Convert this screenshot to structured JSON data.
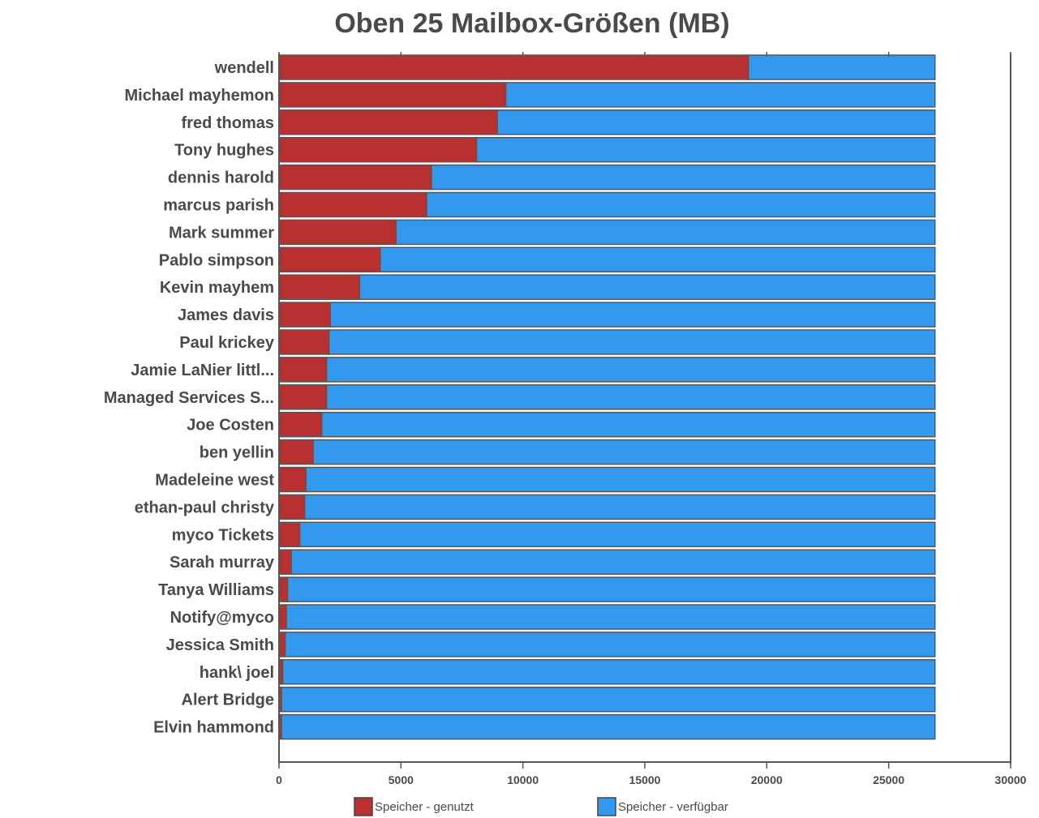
{
  "chart_data": {
    "type": "bar",
    "orientation": "horizontal",
    "stacked": true,
    "title": "Oben 25 Mailbox-Größen (MB)",
    "xlabel": "",
    "ylabel": "",
    "xlim": [
      0,
      30000
    ],
    "x_ticks": [
      "0",
      "5000",
      "10000",
      "15000",
      "20000",
      "25000",
      "30000"
    ],
    "grid": false,
    "legend_position": "bottom",
    "categories": [
      "wendell",
      "Michael mayhemon",
      "fred thomas",
      "Tony hughes",
      "dennis harold",
      "marcus parish",
      "Mark summer",
      "Pablo simpson",
      "Kevin mayhem",
      "James davis",
      "Paul krickey",
      "Jamie LaNier littl...",
      "Managed Services S...",
      "Joe Costen",
      "ben yellin",
      "Madeleine west",
      "ethan-paul christy",
      "myco Tickets",
      "Sarah murray",
      "Tanya Williams",
      "Notify@myco",
      "Jessica Smith",
      "hank\\ joel",
      "Alert Bridge",
      "Elvin hammond"
    ],
    "series": [
      {
        "name": "Speicher - genutzt",
        "color": "#b83030",
        "values": [
          19250,
          9300,
          8950,
          8100,
          6250,
          6050,
          4800,
          4150,
          3300,
          2100,
          2050,
          1950,
          1950,
          1750,
          1400,
          1100,
          1050,
          850,
          500,
          350,
          300,
          250,
          150,
          100,
          100
        ]
      },
      {
        "name": "Speicher - verfügbar",
        "color": "#3399ee",
        "values": [
          7650,
          17600,
          17950,
          18800,
          20650,
          20850,
          22100,
          22750,
          23600,
          24800,
          24850,
          24950,
          24950,
          25150,
          25500,
          25800,
          25850,
          26050,
          26400,
          26550,
          26600,
          26650,
          26750,
          26800,
          26800
        ]
      }
    ]
  }
}
